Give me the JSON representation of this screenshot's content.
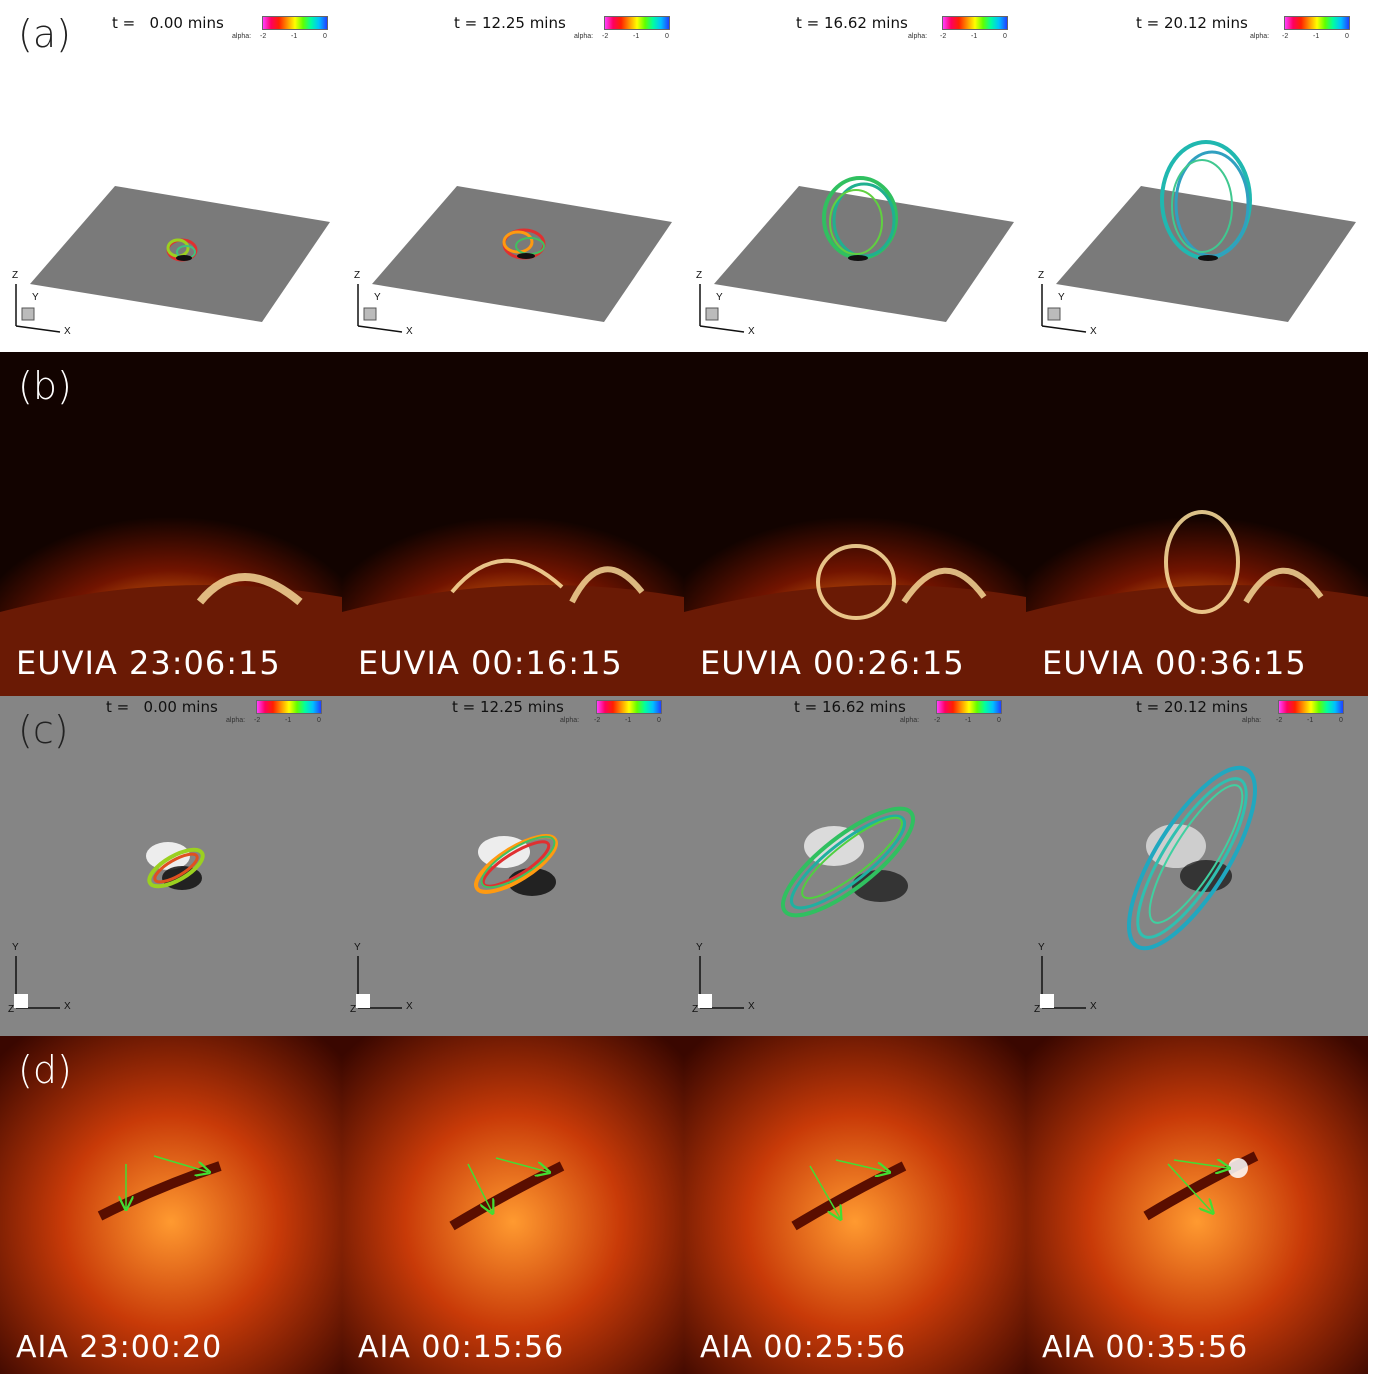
{
  "figure": {
    "rows": [
      {
        "id": "a",
        "label": "(a)"
      },
      {
        "id": "b",
        "label": "(b)"
      },
      {
        "id": "c",
        "label": "(c)"
      },
      {
        "id": "d",
        "label": "(d)"
      }
    ],
    "sim_times": [
      "t =   0.00 mins",
      "t = 12.25 mins",
      "t = 16.62 mins",
      "t = 20.12 mins"
    ],
    "colorbar": {
      "title": "alpha:",
      "ticks": [
        "-2",
        "-1",
        "0"
      ]
    },
    "axes_3d": {
      "x": "X",
      "y": "Y",
      "z": "Z"
    },
    "euvi_labels": [
      "EUVIA 23:06:15",
      "EUVIA 00:16:15",
      "EUVIA 00:26:15",
      "EUVIA 00:36:15"
    ],
    "aia_labels": [
      "AIA 23:00:20",
      "AIA 00:15:56",
      "AIA 00:25:56",
      "AIA 00:35:56"
    ],
    "colors": {
      "arrow": "#44dd33",
      "plane": "#7a7a7a",
      "euv_bright": "#ff8a1a"
    }
  }
}
